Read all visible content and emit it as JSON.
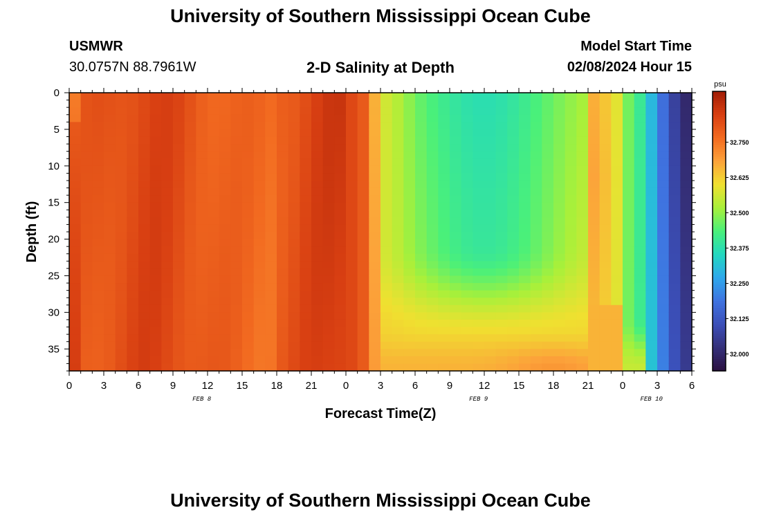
{
  "header": {
    "title": "University of Southern Mississippi Ocean Cube",
    "station_id": "USMWR",
    "coordinates": "30.0757N  88.7961W",
    "subtitle": "2-D Salinity at Depth",
    "model_label": "Model Start Time",
    "model_time": "02/08/2024 Hour 15"
  },
  "footer": {
    "title": "University of Southern Mississippi Ocean Cube"
  },
  "chart_data": {
    "type": "heatmap",
    "title": "2-D Salinity at Depth",
    "xlabel": "Forecast Time(Z)",
    "ylabel": "Depth (ft)",
    "x_hours": [
      0,
      3,
      6,
      9,
      12,
      15,
      18,
      21,
      24,
      27,
      30,
      33,
      36,
      39,
      42,
      45,
      48,
      51,
      54
    ],
    "x_tick_labels": [
      "0",
      "3",
      "6",
      "9",
      "12",
      "15",
      "18",
      "21",
      "0",
      "3",
      "6",
      "9",
      "12",
      "15",
      "18",
      "21",
      "0",
      "3",
      "6"
    ],
    "x_day_labels": [
      {
        "label": "FEB 8",
        "hour": 11.5
      },
      {
        "label": "FEB 9",
        "hour": 35.5
      },
      {
        "label": "FEB 10",
        "hour": 50.5
      }
    ],
    "y_ticks": [
      0,
      5,
      10,
      15,
      20,
      25,
      30,
      35
    ],
    "ylim": [
      38,
      0
    ],
    "colorbar": {
      "unit": "psu",
      "min": 31.94,
      "max": 32.93,
      "tick_values": [
        32.0,
        32.125,
        32.25,
        32.375,
        32.5,
        32.625,
        32.75
      ],
      "tick_labels": [
        "32.000",
        "32.125",
        "32.250",
        "32.375",
        "32.500",
        "32.625",
        "32.750"
      ],
      "colors": [
        "#2a1040",
        "#35307a",
        "#3b4fb8",
        "#3f73e0",
        "#2ea8ec",
        "#22d8c0",
        "#4af07a",
        "#a8f03a",
        "#f0e030",
        "#fca23a",
        "#f26a20",
        "#d83f12",
        "#a01c05"
      ]
    },
    "grid": false,
    "legend": "colorbar-right"
  }
}
